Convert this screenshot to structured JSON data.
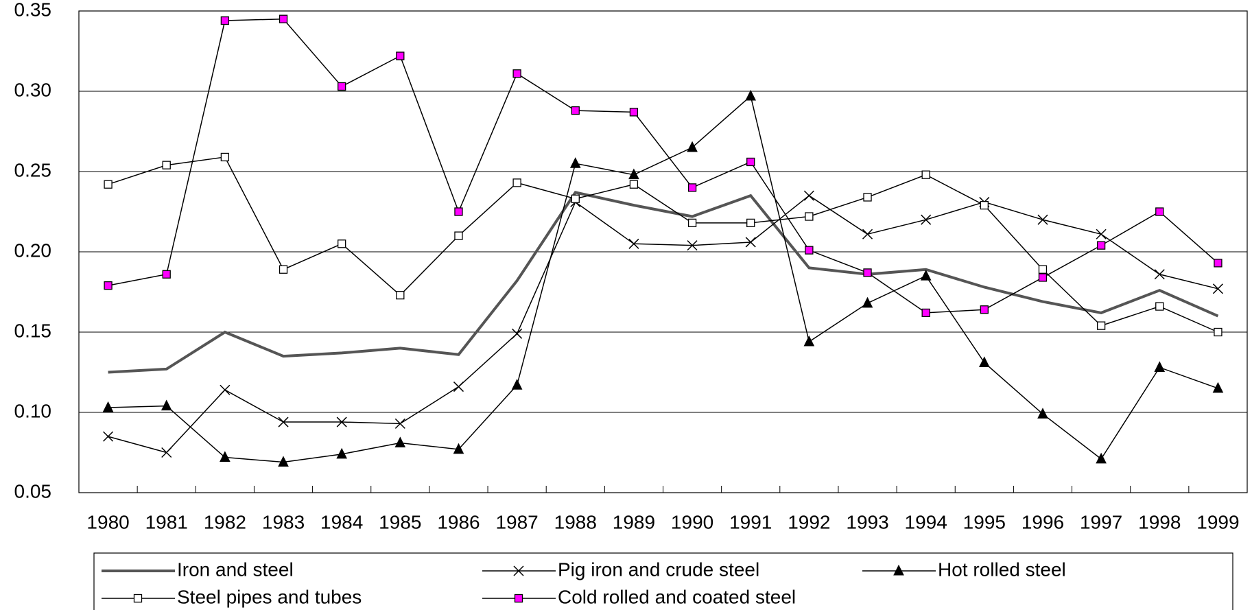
{
  "chart_data": {
    "type": "line",
    "categories": [
      "1980",
      "1981",
      "1982",
      "1983",
      "1984",
      "1985",
      "1986",
      "1987",
      "1988",
      "1989",
      "1990",
      "1991",
      "1992",
      "1993",
      "1994",
      "1995",
      "1996",
      "1997",
      "1998",
      "1999"
    ],
    "ylim": [
      0.05,
      0.35
    ],
    "yticks": [
      {
        "value": 0.05,
        "label": "0.05"
      },
      {
        "value": 0.1,
        "label": "0.10"
      },
      {
        "value": 0.15,
        "label": "0.15"
      },
      {
        "value": 0.2,
        "label": "0.20"
      },
      {
        "value": 0.25,
        "label": "0.25"
      },
      {
        "value": 0.3,
        "label": "0.30"
      },
      {
        "value": 0.35,
        "label": "0.35"
      }
    ],
    "grid": true,
    "legend": "bottom",
    "series": [
      {
        "name": "Iron and steel",
        "color": "#555555",
        "marker": "none",
        "marker_color": "#555555",
        "values": [
          0.125,
          0.127,
          0.15,
          0.135,
          0.137,
          0.14,
          0.136,
          0.182,
          0.237,
          0.229,
          0.222,
          0.235,
          0.19,
          0.186,
          0.189,
          0.178,
          0.169,
          0.162,
          0.176,
          0.16
        ]
      },
      {
        "name": "Pig iron and crude steel",
        "color": "#000000",
        "marker": "x",
        "marker_color": "#000000",
        "values": [
          0.085,
          0.075,
          0.114,
          0.094,
          0.094,
          0.093,
          0.116,
          0.149,
          0.231,
          0.205,
          0.204,
          0.206,
          0.235,
          0.211,
          0.22,
          0.231,
          0.22,
          0.211,
          0.186,
          0.177
        ]
      },
      {
        "name": "Hot rolled steel",
        "color": "#000000",
        "marker": "triangle",
        "marker_color": "#000000",
        "values": [
          0.103,
          0.104,
          0.072,
          0.069,
          0.074,
          0.081,
          0.077,
          0.117,
          0.255,
          0.248,
          0.265,
          0.297,
          0.144,
          0.168,
          0.185,
          0.131,
          0.099,
          0.071,
          0.128,
          0.115
        ]
      },
      {
        "name": "Steel pipes and tubes",
        "color": "#000000",
        "marker": "square",
        "marker_color": "#ffffff",
        "values": [
          0.242,
          0.254,
          0.259,
          0.189,
          0.205,
          0.173,
          0.21,
          0.243,
          0.233,
          0.242,
          0.218,
          0.218,
          0.222,
          0.234,
          0.248,
          0.229,
          0.189,
          0.154,
          0.166,
          0.15
        ]
      },
      {
        "name": "Cold rolled and coated steel",
        "color": "#000000",
        "marker": "square",
        "marker_color": "#ff00ff",
        "values": [
          0.179,
          0.186,
          0.344,
          0.345,
          0.303,
          0.322,
          0.225,
          0.311,
          0.288,
          0.287,
          0.24,
          0.256,
          0.201,
          0.187,
          0.162,
          0.164,
          0.184,
          0.204,
          0.225,
          0.193
        ]
      }
    ]
  }
}
